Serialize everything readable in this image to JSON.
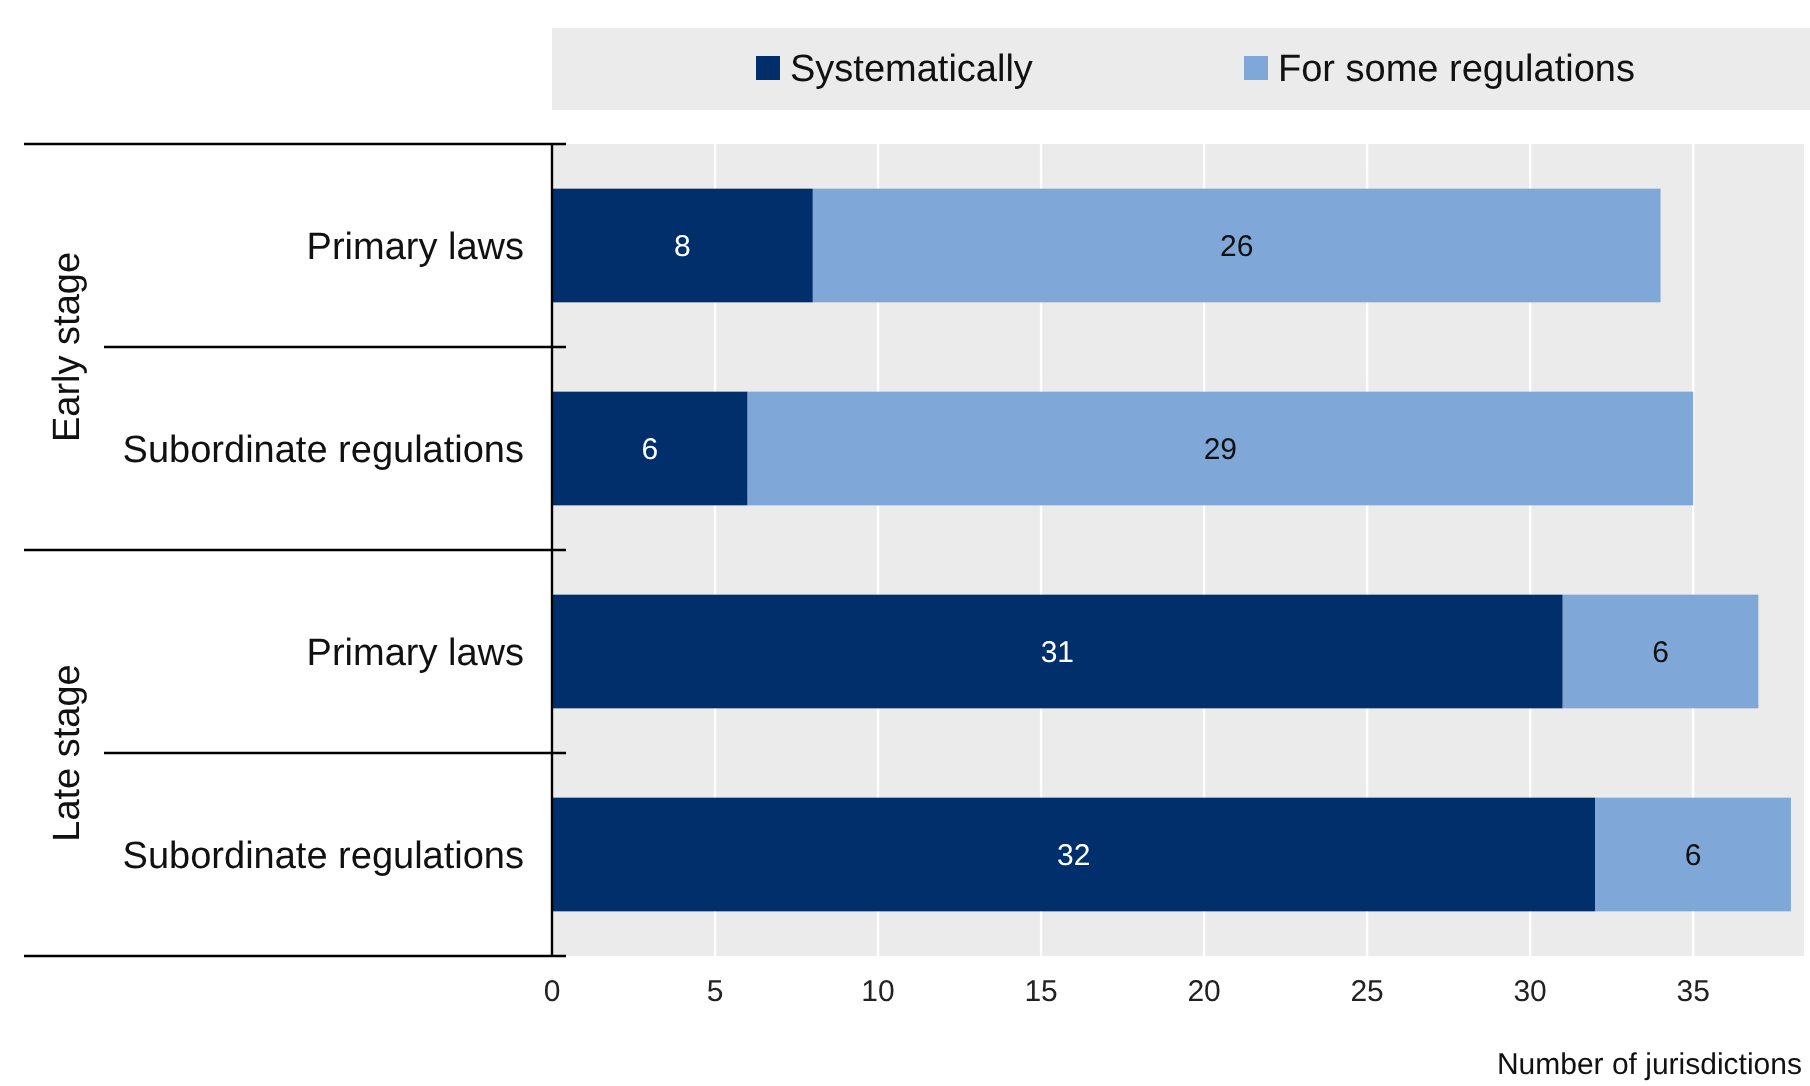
{
  "chart_data": {
    "type": "bar",
    "orientation": "horizontal",
    "stacked": true,
    "categories": [
      "Primary laws",
      "Subordinate regulations",
      "Primary laws",
      "Subordinate regulations"
    ],
    "series": [
      {
        "name": "Systematically",
        "color": "#002f6c",
        "values": [
          8,
          6,
          31,
          32
        ]
      },
      {
        "name": "For some regulations",
        "color": "#7fa8d9",
        "values": [
          26,
          29,
          6,
          6
        ]
      }
    ],
    "xlabel": "Number of jurisdictions",
    "annotations": [
      "Early stage",
      "Late stage"
    ],
    "xlim": [
      0,
      38.4
    ],
    "xticks": [
      0,
      5,
      10,
      15,
      20,
      25,
      30,
      35
    ],
    "grid": "x",
    "legend": "top",
    "data_labels": true
  }
}
